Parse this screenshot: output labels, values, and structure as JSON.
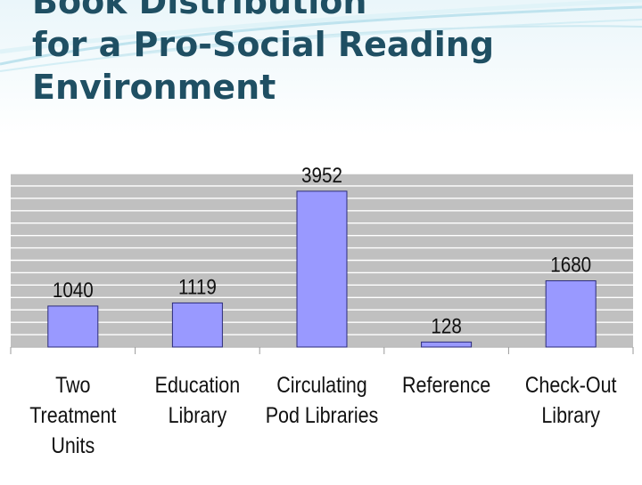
{
  "slide": {
    "title_lines": [
      "Book Distribution",
      "for a Pro-Social Reading",
      "Environment"
    ]
  },
  "colors": {
    "title": "#1f4f63",
    "bar": "#9999ff",
    "bar_stroke": "#2b2b7a",
    "plot_bg": "#c0c0c0",
    "grid": "#ffffff"
  },
  "chart_data": {
    "type": "bar",
    "categories": [
      [
        "Two",
        "Treatment",
        "Units"
      ],
      [
        "Education",
        "Library"
      ],
      [
        "Circulating",
        "Pod Libraries"
      ],
      [
        "Reference"
      ],
      [
        "Check-Out",
        "Library"
      ]
    ],
    "values": [
      1040,
      1119,
      3952,
      128,
      1680
    ],
    "data_labels": [
      "1040",
      "1119",
      "3952",
      "128",
      "1680"
    ],
    "ylim": [
      0,
      4400
    ],
    "grid": true,
    "legend": "none",
    "title": "",
    "xlabel": "",
    "ylabel": ""
  }
}
